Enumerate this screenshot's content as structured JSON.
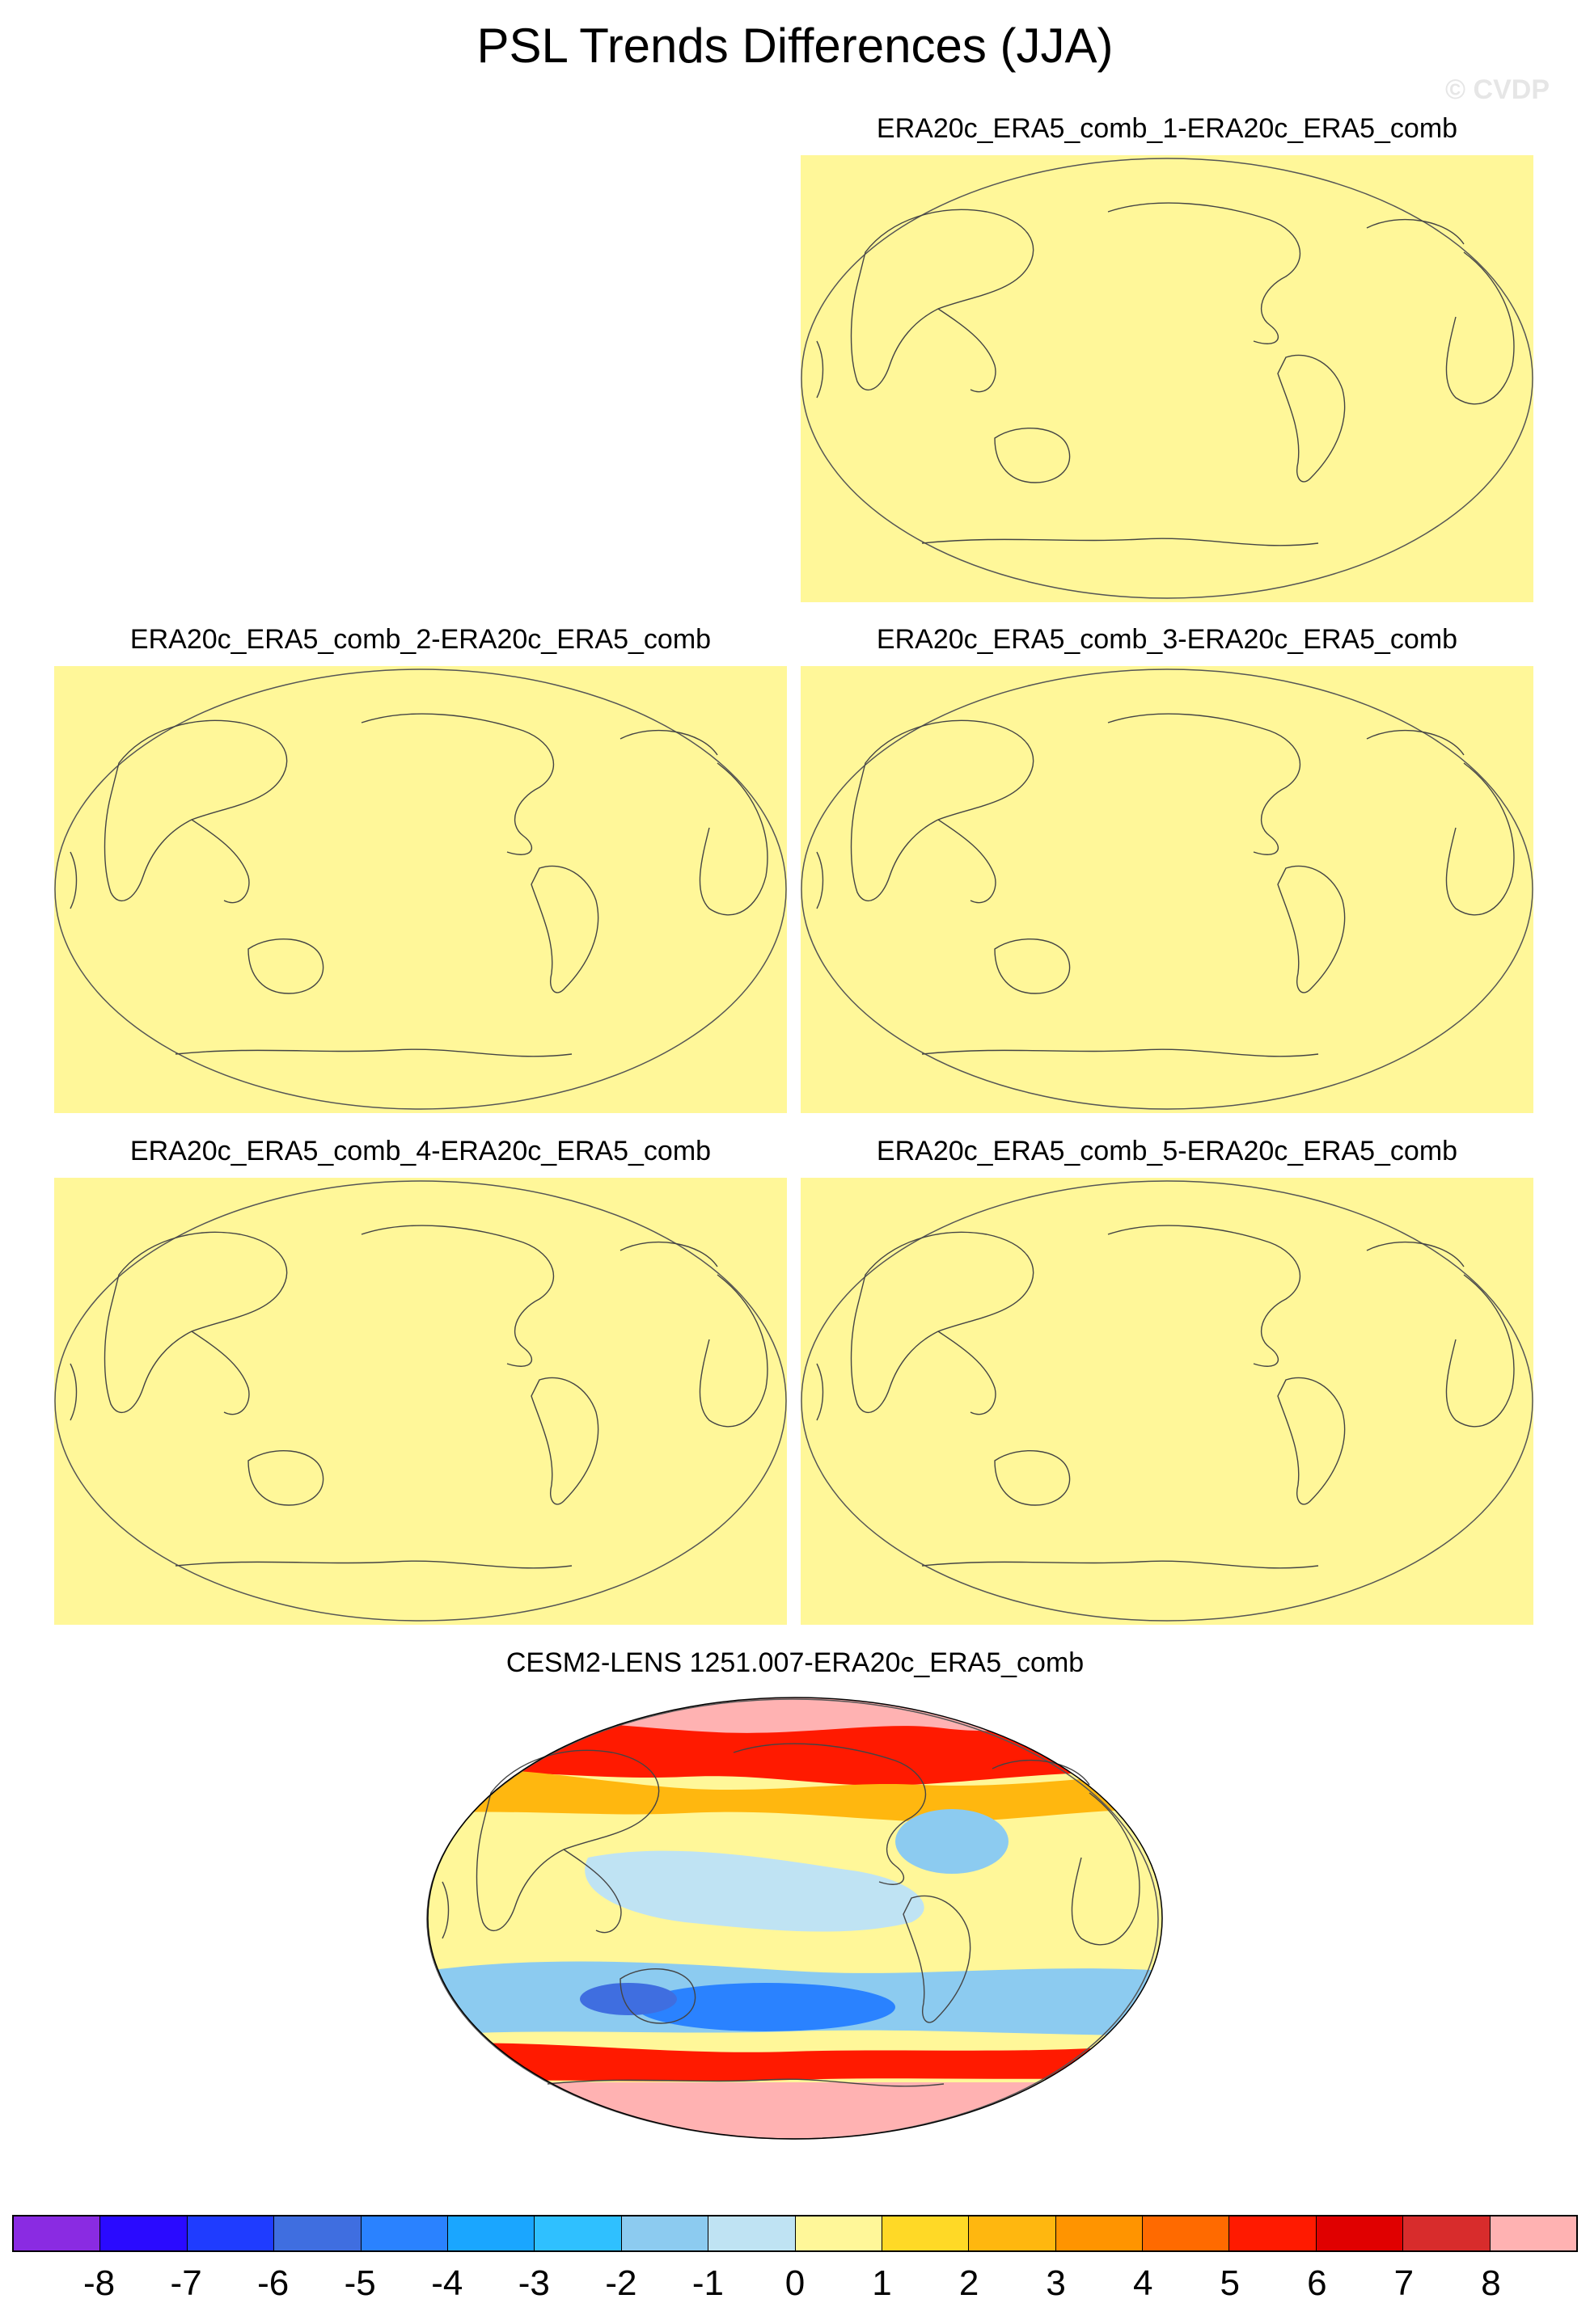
{
  "title": "PSL Trends Differences (JJA)",
  "watermark": "© CVDP",
  "panels": [
    {
      "id": "p1",
      "title": "ERA20c_ERA5_comb_1-ERA20c_ERA5_comb",
      "fill_color": "#fff799"
    },
    {
      "id": "p2",
      "title": "ERA20c_ERA5_comb_2-ERA20c_ERA5_comb",
      "fill_color": "#fff799"
    },
    {
      "id": "p3",
      "title": "ERA20c_ERA5_comb_3-ERA20c_ERA5_comb",
      "fill_color": "#fff799"
    },
    {
      "id": "p4",
      "title": "ERA20c_ERA5_comb_4-ERA20c_ERA5_comb",
      "fill_color": "#fff799"
    },
    {
      "id": "p5",
      "title": "ERA20c_ERA5_comb_5-ERA20c_ERA5_comb",
      "fill_color": "#fff799"
    }
  ],
  "model_panel": {
    "title": "CESM2-LENS 1251.007-ERA20c_ERA5_comb"
  },
  "colorbar": {
    "colors": [
      "#8a2be2",
      "#2a0aff",
      "#1f3cff",
      "#3f6ee0",
      "#2a82ff",
      "#1aa6ff",
      "#2fc0ff",
      "#8ccbf0",
      "#bfe3f3",
      "#fff799",
      "#ffd926",
      "#ffb70f",
      "#ff9400",
      "#ff6a00",
      "#ff1a00",
      "#e00000",
      "#d82c2c",
      "#ffb2b2"
    ],
    "labels": [
      "-8",
      "-7",
      "-6",
      "-5",
      "-4",
      "-3",
      "-2",
      "-1",
      "0",
      "1",
      "2",
      "3",
      "4",
      "5",
      "6",
      "7",
      "8"
    ]
  }
}
